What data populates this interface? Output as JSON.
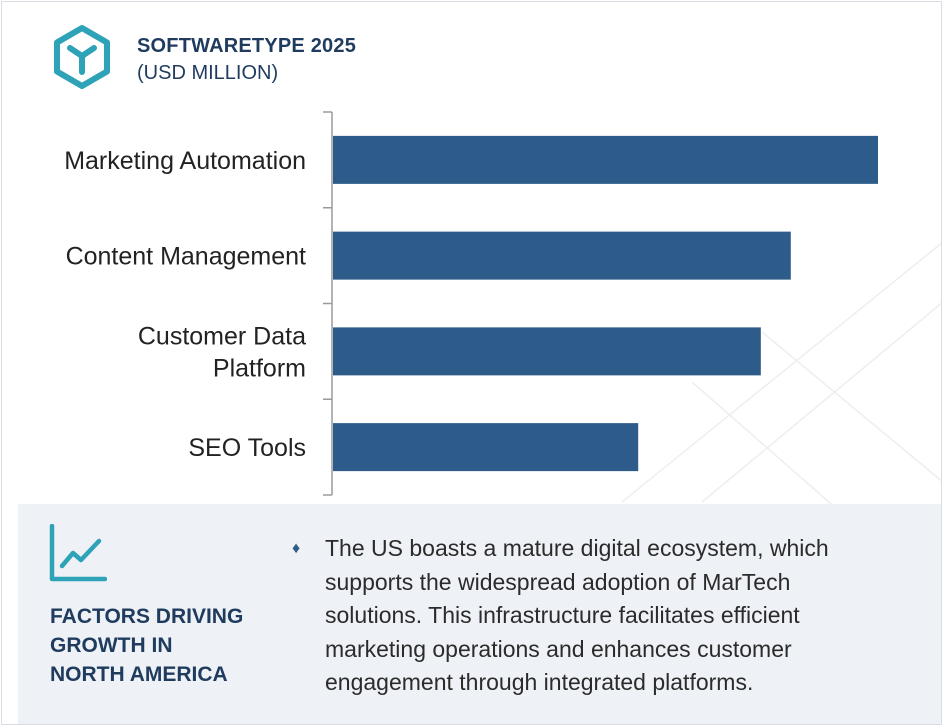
{
  "header": {
    "title": "SOFTWARETYPE 2025",
    "subtitle": "(USD MILLION)",
    "logo_icon": "cube-icon",
    "accent_color": "#2ea3b8"
  },
  "chart_data": {
    "type": "bar",
    "orientation": "horizontal",
    "title": "SOFTWARETYPE 2025",
    "subtitle": "(USD MILLION)",
    "categories": [
      [
        "Marketing Automation"
      ],
      [
        "Content Management"
      ],
      [
        "Customer Data",
        "Platform"
      ],
      [
        "SEO Tools"
      ]
    ],
    "values": [
      100,
      84,
      78.5,
      56
    ],
    "xlim": [
      0,
      100
    ],
    "bar_color": "#2d5c8a",
    "grid": false,
    "legend": "none"
  },
  "factors": {
    "icon": "line-chart-icon",
    "title_lines": [
      "FACTORS DRIVING",
      "GROWTH IN",
      "NORTH AMERICA"
    ],
    "bullet_icon": "diamond-bullet-icon",
    "bullet_symbol": "♦",
    "text": "The US boasts a mature digital ecosystem, which supports the widespread adoption of MarTech solutions. This infrastructure facilitates efficient marketing operations and enhances customer engagement through integrated platforms."
  }
}
